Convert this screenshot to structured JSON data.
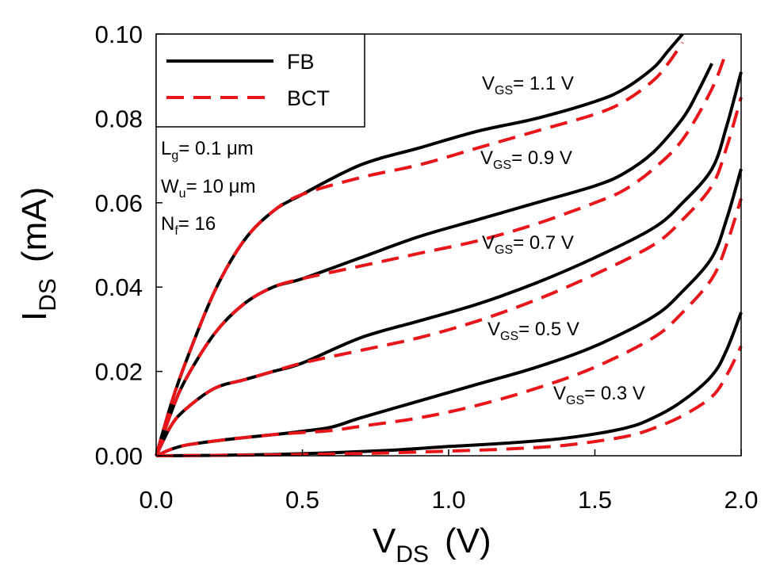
{
  "chart_data": {
    "type": "line",
    "xlabel": {
      "main": "V",
      "sub": "DS",
      "unit": "(V)"
    },
    "ylabel": {
      "main": "I",
      "sub": "DS",
      "unit": "(mA)"
    },
    "xlim": [
      0,
      2.0
    ],
    "ylim": [
      0,
      0.1
    ],
    "xticks": [
      "0.0",
      "0.5",
      "1.0",
      "1.5",
      "2.0"
    ],
    "yticks": [
      "0.00",
      "0.02",
      "0.04",
      "0.06",
      "0.08",
      "0.10"
    ],
    "grid": false,
    "legend": {
      "placement": "top-left",
      "entries": [
        {
          "label": "FB",
          "color": "#000000",
          "style": "solid"
        },
        {
          "label": "BCT",
          "color": "#e8161b",
          "style": "dashed"
        }
      ]
    },
    "params": [
      {
        "main": "L",
        "sub": "g",
        "text": "= 0.1 μm"
      },
      {
        "main": "W",
        "sub": "u",
        "text": "= 10 μm"
      },
      {
        "main": "N",
        "sub": "f",
        "text": "= 16"
      }
    ],
    "curve_labels": [
      {
        "main": "V",
        "sub": "GS",
        "text": "= 1.1 V"
      },
      {
        "main": "V",
        "sub": "GS",
        "text": "= 0.9 V"
      },
      {
        "main": "V",
        "sub": "GS",
        "text": "= 0.7 V"
      },
      {
        "main": "V",
        "sub": "GS",
        "text": "= 0.5 V"
      },
      {
        "main": "V",
        "sub": "GS",
        "text": "= 0.3 V"
      }
    ],
    "series": [
      {
        "name": "FB",
        "vgs": "1.1",
        "style": "solid",
        "color": "#000000",
        "x": [
          0,
          0.05,
          0.1,
          0.2,
          0.3,
          0.4,
          0.5,
          0.7,
          0.9,
          1.1,
          1.3,
          1.5,
          1.6,
          1.7,
          1.75,
          1.8
        ],
        "y": [
          0,
          0.012,
          0.022,
          0.039,
          0.051,
          0.058,
          0.062,
          0.069,
          0.073,
          0.077,
          0.08,
          0.084,
          0.087,
          0.092,
          0.096,
          0.1
        ]
      },
      {
        "name": "BCT",
        "vgs": "1.1",
        "style": "dashed",
        "color": "#e8161b",
        "x": [
          0,
          0.05,
          0.1,
          0.2,
          0.3,
          0.4,
          0.5,
          0.7,
          0.9,
          1.1,
          1.3,
          1.5,
          1.6,
          1.7,
          1.75,
          1.8
        ],
        "y": [
          0,
          0.012,
          0.022,
          0.039,
          0.051,
          0.058,
          0.062,
          0.066,
          0.069,
          0.073,
          0.077,
          0.081,
          0.084,
          0.089,
          0.093,
          0.098
        ]
      },
      {
        "name": "FB",
        "vgs": "0.9",
        "style": "solid",
        "color": "#000000",
        "x": [
          0,
          0.05,
          0.1,
          0.2,
          0.3,
          0.4,
          0.5,
          0.7,
          0.9,
          1.1,
          1.3,
          1.5,
          1.6,
          1.7,
          1.8,
          1.85,
          1.9
        ],
        "y": [
          0,
          0.01,
          0.018,
          0.029,
          0.036,
          0.04,
          0.042,
          0.047,
          0.052,
          0.056,
          0.06,
          0.064,
          0.067,
          0.072,
          0.08,
          0.086,
          0.093
        ]
      },
      {
        "name": "BCT",
        "vgs": "0.9",
        "style": "dashed",
        "color": "#e8161b",
        "x": [
          0,
          0.05,
          0.1,
          0.2,
          0.3,
          0.4,
          0.5,
          0.7,
          0.9,
          1.1,
          1.3,
          1.5,
          1.6,
          1.7,
          1.8,
          1.9,
          1.95
        ],
        "y": [
          0,
          0.01,
          0.018,
          0.029,
          0.036,
          0.04,
          0.042,
          0.045,
          0.048,
          0.051,
          0.055,
          0.06,
          0.063,
          0.068,
          0.075,
          0.087,
          0.096
        ]
      },
      {
        "name": "FB",
        "vgs": "0.7",
        "style": "solid",
        "color": "#000000",
        "x": [
          0,
          0.05,
          0.1,
          0.2,
          0.3,
          0.4,
          0.5,
          0.7,
          0.9,
          1.1,
          1.3,
          1.5,
          1.7,
          1.8,
          1.9,
          1.95,
          2.0
        ],
        "y": [
          0,
          0.007,
          0.011,
          0.016,
          0.018,
          0.02,
          0.022,
          0.028,
          0.032,
          0.036,
          0.041,
          0.047,
          0.054,
          0.06,
          0.068,
          0.078,
          0.091
        ]
      },
      {
        "name": "BCT",
        "vgs": "0.7",
        "style": "dashed",
        "color": "#e8161b",
        "x": [
          0,
          0.05,
          0.1,
          0.2,
          0.3,
          0.4,
          0.5,
          0.7,
          0.9,
          1.1,
          1.3,
          1.5,
          1.7,
          1.8,
          1.9,
          1.95,
          2.0
        ],
        "y": [
          0,
          0.007,
          0.011,
          0.016,
          0.018,
          0.02,
          0.022,
          0.025,
          0.028,
          0.032,
          0.037,
          0.043,
          0.05,
          0.056,
          0.064,
          0.073,
          0.085
        ]
      },
      {
        "name": "FB",
        "vgs": "0.5",
        "style": "solid",
        "color": "#000000",
        "x": [
          0,
          0.05,
          0.1,
          0.2,
          0.3,
          0.4,
          0.5,
          0.6,
          0.7,
          0.9,
          1.1,
          1.3,
          1.5,
          1.7,
          1.8,
          1.9,
          1.95,
          2.0
        ],
        "y": [
          0,
          0.0015,
          0.0025,
          0.0035,
          0.0043,
          0.005,
          0.0058,
          0.0068,
          0.009,
          0.013,
          0.017,
          0.021,
          0.026,
          0.033,
          0.039,
          0.047,
          0.056,
          0.068
        ]
      },
      {
        "name": "BCT",
        "vgs": "0.5",
        "style": "dashed",
        "color": "#e8161b",
        "x": [
          0,
          0.05,
          0.1,
          0.2,
          0.3,
          0.4,
          0.5,
          0.6,
          0.7,
          0.9,
          1.1,
          1.3,
          1.5,
          1.7,
          1.8,
          1.9,
          1.95,
          2.0
        ],
        "y": [
          0,
          0.0015,
          0.0025,
          0.0035,
          0.0043,
          0.005,
          0.0055,
          0.006,
          0.007,
          0.009,
          0.012,
          0.016,
          0.021,
          0.028,
          0.034,
          0.042,
          0.05,
          0.061
        ]
      },
      {
        "name": "FB",
        "vgs": "0.3",
        "style": "solid",
        "color": "#000000",
        "x": [
          0,
          0.2,
          0.4,
          0.6,
          0.8,
          1.0,
          1.2,
          1.4,
          1.6,
          1.7,
          1.8,
          1.9,
          1.95,
          2.0
        ],
        "y": [
          0,
          0.0001,
          0.0003,
          0.0007,
          0.0013,
          0.0022,
          0.003,
          0.0042,
          0.0065,
          0.009,
          0.013,
          0.019,
          0.025,
          0.034
        ]
      },
      {
        "name": "BCT",
        "vgs": "0.3",
        "style": "dashed",
        "color": "#e8161b",
        "x": [
          0,
          0.2,
          0.4,
          0.6,
          0.8,
          1.0,
          1.2,
          1.4,
          1.6,
          1.7,
          1.8,
          1.9,
          1.95,
          2.0
        ],
        "y": [
          0,
          0.0001,
          0.0002,
          0.0004,
          0.0007,
          0.0011,
          0.0016,
          0.0025,
          0.0045,
          0.0065,
          0.0095,
          0.014,
          0.019,
          0.026
        ]
      }
    ]
  }
}
